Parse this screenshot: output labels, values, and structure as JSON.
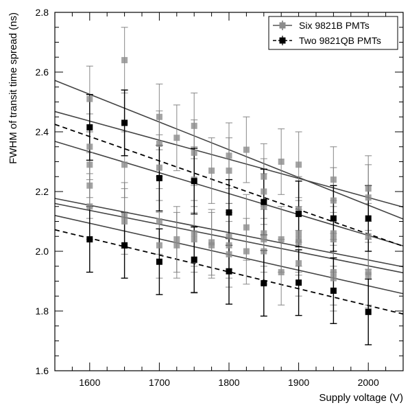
{
  "chart_data": {
    "type": "scatter",
    "xlabel": "Supply voltage (V)",
    "ylabel": "FWHM of transit time spread (ns)",
    "xlim": [
      1550,
      2050
    ],
    "ylim": [
      1.6,
      2.8
    ],
    "xticks": [
      1600,
      1700,
      1800,
      1900,
      2000
    ],
    "xtick_labels": [
      "1600",
      "1700",
      "1800",
      "1900",
      "2000"
    ],
    "yticks": [
      1.6,
      1.8,
      2.0,
      2.2,
      2.4,
      2.6,
      2.8
    ],
    "ytick_labels": [
      "1.6",
      "1.8",
      "2.0",
      "2.2",
      "2.4",
      "2.6",
      "2.8"
    ],
    "legend_position": "top-right",
    "legend": [
      {
        "label": "Six 9821B PMTs",
        "color": "#555555",
        "line": "solid",
        "marker": "square"
      },
      {
        "label": "Two 9821QB PMTs",
        "color": "#000000",
        "line": "dashed",
        "marker": "square"
      }
    ],
    "series": [
      {
        "name": "Six 9821B PMTs",
        "color": "#7a7a7a",
        "error": 0.11,
        "points": [
          [
            1600,
            2.51
          ],
          [
            1600,
            2.35
          ],
          [
            1600,
            2.29
          ],
          [
            1600,
            2.22
          ],
          [
            1600,
            2.15
          ],
          [
            1650,
            2.64
          ],
          [
            1650,
            2.43
          ],
          [
            1650,
            2.29
          ],
          [
            1650,
            2.12
          ],
          [
            1650,
            2.1
          ],
          [
            1700,
            2.45
          ],
          [
            1700,
            2.36
          ],
          [
            1700,
            2.28
          ],
          [
            1700,
            2.1
          ],
          [
            1700,
            2.02
          ],
          [
            1725,
            2.38
          ],
          [
            1725,
            2.04
          ],
          [
            1725,
            2.02
          ],
          [
            1750,
            2.42
          ],
          [
            1750,
            2.33
          ],
          [
            1750,
            2.24
          ],
          [
            1750,
            2.06
          ],
          [
            1750,
            2.04
          ],
          [
            1750,
            1.97
          ],
          [
            1775,
            2.27
          ],
          [
            1775,
            2.03
          ],
          [
            1775,
            2.02
          ],
          [
            1800,
            2.32
          ],
          [
            1800,
            2.27
          ],
          [
            1800,
            2.05
          ],
          [
            1800,
            2.02
          ],
          [
            1800,
            1.99
          ],
          [
            1825,
            2.34
          ],
          [
            1825,
            2.08
          ],
          [
            1825,
            2.0
          ],
          [
            1850,
            2.25
          ],
          [
            1850,
            2.2
          ],
          [
            1850,
            2.15
          ],
          [
            1850,
            2.06
          ],
          [
            1850,
            2.04
          ],
          [
            1850,
            2.0
          ],
          [
            1875,
            2.3
          ],
          [
            1875,
            2.04
          ],
          [
            1875,
            1.93
          ],
          [
            1900,
            2.29
          ],
          [
            1900,
            2.14
          ],
          [
            1900,
            2.06
          ],
          [
            1900,
            2.04
          ],
          [
            1900,
            2.03
          ],
          [
            1900,
            1.96
          ],
          [
            1950,
            2.24
          ],
          [
            1950,
            2.17
          ],
          [
            1950,
            2.06
          ],
          [
            1950,
            2.04
          ],
          [
            1950,
            1.93
          ],
          [
            1950,
            1.91
          ],
          [
            2000,
            2.21
          ],
          [
            2000,
            2.18
          ],
          [
            2000,
            2.05
          ],
          [
            2000,
            1.93
          ],
          [
            2000,
            1.92
          ]
        ],
        "fits": [
          [
            [
              1550,
              2.572
            ],
            [
              2050,
              2.108
            ]
          ],
          [
            [
              1550,
              2.468
            ],
            [
              2050,
              2.148
            ]
          ],
          [
            [
              1550,
              2.368
            ],
            [
              2050,
              2.018
            ]
          ],
          [
            [
              1550,
              2.177
            ],
            [
              2050,
              1.948
            ]
          ],
          [
            [
              1550,
              2.16
            ],
            [
              2050,
              1.928
            ]
          ],
          [
            [
              1550,
              2.12
            ],
            [
              2050,
              1.858
            ]
          ]
        ]
      },
      {
        "name": "Two 9821QB PMTs",
        "color": "#000000",
        "error": 0.11,
        "points": [
          [
            1600,
            2.415
          ],
          [
            1650,
            2.43
          ],
          [
            1700,
            2.245
          ],
          [
            1750,
            2.235
          ],
          [
            1800,
            2.13
          ],
          [
            1850,
            2.165
          ],
          [
            1900,
            2.125
          ],
          [
            1950,
            2.11
          ],
          [
            2000,
            2.11
          ],
          [
            1600,
            2.04
          ],
          [
            1650,
            2.02
          ],
          [
            1700,
            1.965
          ],
          [
            1750,
            1.972
          ],
          [
            1800,
            1.933
          ],
          [
            1850,
            1.893
          ],
          [
            1900,
            1.895
          ],
          [
            1950,
            1.868
          ],
          [
            2000,
            1.797
          ]
        ],
        "fits": [
          [
            [
              1550,
              2.425
            ],
            [
              2050,
              2.017
            ]
          ],
          [
            [
              1550,
              2.072
            ],
            [
              2050,
              1.79
            ]
          ]
        ]
      }
    ]
  }
}
